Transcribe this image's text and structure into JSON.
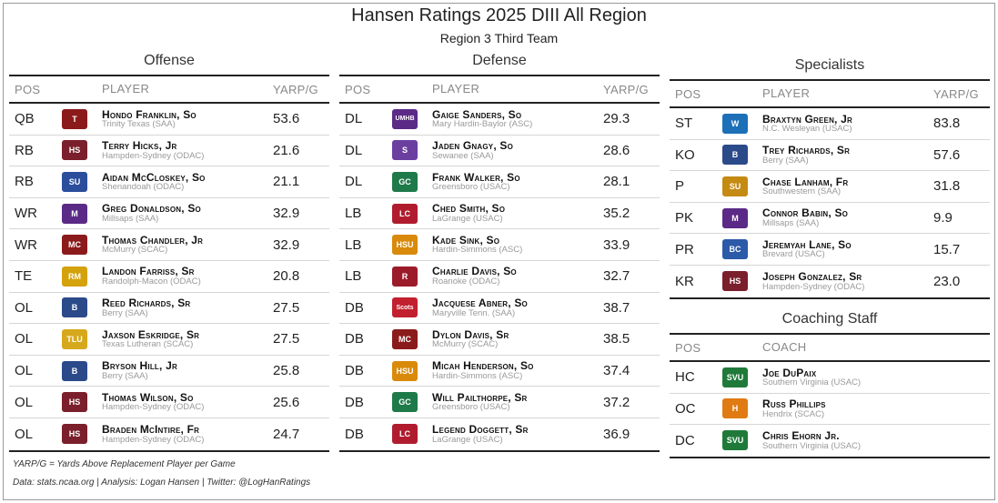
{
  "title": "Hansen Ratings 2025 DIII All Region",
  "subtitle": "Region 3 Third Team",
  "offense": {
    "title": "Offense",
    "headers": {
      "pos": "POS",
      "player": "PLAYER",
      "val": "YARP/G"
    },
    "rows": [
      {
        "pos": "QB",
        "name": "Hondo Franklin, So",
        "school": "Trinity Texas (SAA)",
        "val": "53.6",
        "logo_icon": "trinity-tiger-logo",
        "color": "#8b1a1a",
        "glyph": "T"
      },
      {
        "pos": "RB",
        "name": "Terry Hicks, Jr",
        "school": "Hampden-Sydney (ODAC)",
        "val": "21.6",
        "logo_icon": "hampden-sydney-logo",
        "color": "#7a1f2b",
        "glyph": "HS"
      },
      {
        "pos": "RB",
        "name": "Aidan McCloskey, So",
        "school": "Shenandoah (ODAC)",
        "val": "21.1",
        "logo_icon": "shenandoah-hornet-logo",
        "color": "#2a4d9c",
        "glyph": "SU"
      },
      {
        "pos": "WR",
        "name": "Greg Donaldson, So",
        "school": "Millsaps (SAA)",
        "val": "32.9",
        "logo_icon": "millsaps-m-logo",
        "color": "#5b2a86",
        "glyph": "M"
      },
      {
        "pos": "WR",
        "name": "Thomas Chandler, Jr",
        "school": "McMurry (SCAC)",
        "val": "32.9",
        "logo_icon": "mcmurry-logo",
        "color": "#8b1a1a",
        "glyph": "MC"
      },
      {
        "pos": "TE",
        "name": "Landon Farriss, Sr",
        "school": "Randolph-Macon (ODAC)",
        "val": "20.8",
        "logo_icon": "randolph-macon-yellowjacket-logo",
        "color": "#d4a20a",
        "glyph": "RM"
      },
      {
        "pos": "OL",
        "name": "Reed Richards, Sr",
        "school": "Berry (SAA)",
        "val": "27.5",
        "logo_icon": "berry-shield-logo",
        "color": "#2b4a8a",
        "glyph": "B"
      },
      {
        "pos": "OL",
        "name": "Jaxson Eskridge, Sr",
        "school": "Texas Lutheran (SCAC)",
        "val": "27.5",
        "logo_icon": "texas-lutheran-logo",
        "color": "#d6a81c",
        "glyph": "TLU"
      },
      {
        "pos": "OL",
        "name": "Bryson Hill, Jr",
        "school": "Berry (SAA)",
        "val": "25.8",
        "logo_icon": "berry-shield-logo",
        "color": "#2b4a8a",
        "glyph": "B"
      },
      {
        "pos": "OL",
        "name": "Thomas Wilson, So",
        "school": "Hampden-Sydney (ODAC)",
        "val": "25.6",
        "logo_icon": "hampden-sydney-logo",
        "color": "#7a1f2b",
        "glyph": "HS"
      },
      {
        "pos": "OL",
        "name": "Braden McIntire, Fr",
        "school": "Hampden-Sydney (ODAC)",
        "val": "24.7",
        "logo_icon": "hampden-sydney-logo",
        "color": "#7a1f2b",
        "glyph": "HS"
      }
    ]
  },
  "defense": {
    "title": "Defense",
    "headers": {
      "pos": "POS",
      "player": "PLAYER",
      "val": "YARP/G"
    },
    "rows": [
      {
        "pos": "DL",
        "name": "Gaige Sanders, So",
        "school": "Mary Hardin-Baylor (ASC)",
        "val": "29.3",
        "logo_icon": "umhb-logo",
        "color": "#5b2a86",
        "glyph": "UMHB"
      },
      {
        "pos": "DL",
        "name": "Jaden Gnagy, So",
        "school": "Sewanee (SAA)",
        "val": "28.6",
        "logo_icon": "sewanee-tiger-logo",
        "color": "#6b3fa0",
        "glyph": "S"
      },
      {
        "pos": "DL",
        "name": "Frank Walker, So",
        "school": "Greensboro (USAC)",
        "val": "28.1",
        "logo_icon": "greensboro-gc-logo",
        "color": "#1f7a4a",
        "glyph": "GC"
      },
      {
        "pos": "LB",
        "name": "Ched Smith, So",
        "school": "LaGrange (USAC)",
        "val": "35.2",
        "logo_icon": "lagrange-logo",
        "color": "#b01c2e",
        "glyph": "LC"
      },
      {
        "pos": "LB",
        "name": "Kade Sink, So",
        "school": "Hardin-Simmons (ASC)",
        "val": "33.9",
        "logo_icon": "hardin-simmons-logo",
        "color": "#d98a0a",
        "glyph": "HSU"
      },
      {
        "pos": "LB",
        "name": "Charlie Davis, So",
        "school": "Roanoke (ODAC)",
        "val": "32.7",
        "logo_icon": "roanoke-logo",
        "color": "#9c1b2b",
        "glyph": "R"
      },
      {
        "pos": "DB",
        "name": "Jacquese Abner, So",
        "school": "Maryville Tenn. (SAA)",
        "val": "38.7",
        "logo_icon": "maryville-scots-logo",
        "color": "#c2202f",
        "glyph": "Scots"
      },
      {
        "pos": "DB",
        "name": "Dylon Davis, Sr",
        "school": "McMurry (SCAC)",
        "val": "38.5",
        "logo_icon": "mcmurry-logo",
        "color": "#8b1a1a",
        "glyph": "MC"
      },
      {
        "pos": "DB",
        "name": "Micah Henderson, So",
        "school": "Hardin-Simmons (ASC)",
        "val": "37.4",
        "logo_icon": "hardin-simmons-logo",
        "color": "#d98a0a",
        "glyph": "HSU"
      },
      {
        "pos": "DB",
        "name": "Will Pailthorpe, Sr",
        "school": "Greensboro (USAC)",
        "val": "37.2",
        "logo_icon": "greensboro-gc-logo",
        "color": "#1f7a4a",
        "glyph": "GC"
      },
      {
        "pos": "DB",
        "name": "Legend Doggett, Sr",
        "school": "LaGrange (USAC)",
        "val": "36.9",
        "logo_icon": "lagrange-logo",
        "color": "#b01c2e",
        "glyph": "LC"
      }
    ]
  },
  "specialists": {
    "title": "Specialists",
    "headers": {
      "pos": "POS",
      "player": "PLAYER",
      "val": "YARP/G"
    },
    "rows": [
      {
        "pos": "ST",
        "name": "Braxtyn Green, Jr",
        "school": "N.C. Wesleyan (USAC)",
        "val": "83.8",
        "logo_icon": "nc-wesleyan-logo",
        "color": "#1d6fb8",
        "glyph": "W"
      },
      {
        "pos": "KO",
        "name": "Trey Richards, Sr",
        "school": "Berry (SAA)",
        "val": "57.6",
        "logo_icon": "berry-shield-logo",
        "color": "#2b4a8a",
        "glyph": "B"
      },
      {
        "pos": "P",
        "name": "Chase Lanham, Fr",
        "school": "Southwestern (SAA)",
        "val": "31.8",
        "logo_icon": "southwestern-su-logo",
        "color": "#c48a12",
        "glyph": "SU"
      },
      {
        "pos": "PK",
        "name": "Connor Babin, So",
        "school": "Millsaps (SAA)",
        "val": "9.9",
        "logo_icon": "millsaps-m-logo",
        "color": "#5b2a86",
        "glyph": "M"
      },
      {
        "pos": "PR",
        "name": "Jeremyah Lane, So",
        "school": "Brevard (USAC)",
        "val": "15.7",
        "logo_icon": "brevard-bc-logo",
        "color": "#2a5aa8",
        "glyph": "BC"
      },
      {
        "pos": "KR",
        "name": "Joseph Gonzalez, Sr",
        "school": "Hampden-Sydney (ODAC)",
        "val": "23.0",
        "logo_icon": "hampden-sydney-logo",
        "color": "#7a1f2b",
        "glyph": "HS"
      }
    ]
  },
  "coaching": {
    "title": "Coaching Staff",
    "headers": {
      "pos": "POS",
      "player": "COACH"
    },
    "rows": [
      {
        "pos": "HC",
        "name": "Joe DuPaix",
        "school": "Southern Virginia (USAC)",
        "logo_icon": "southern-virginia-logo",
        "color": "#1f7a3a",
        "glyph": "SVU"
      },
      {
        "pos": "OC",
        "name": "Russ Phillips",
        "school": "Hendrix (SCAC)",
        "logo_icon": "hendrix-warrior-logo",
        "color": "#e07a12",
        "glyph": "H"
      },
      {
        "pos": "DC",
        "name": "Chris Ehorn Jr.",
        "school": "Southern Virginia (USAC)",
        "logo_icon": "southern-virginia-logo",
        "color": "#1f7a3a",
        "glyph": "SVU"
      }
    ]
  },
  "footer": {
    "note": "YARP/G = Yards Above Replacement Player per Game",
    "credit": "Data: stats.ncaa.org | Analysis: Logan Hansen | Twitter: @LogHanRatings"
  }
}
